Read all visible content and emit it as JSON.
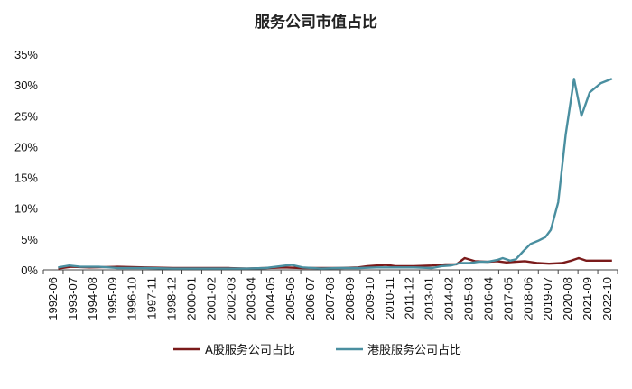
{
  "title": "服务公司市值占比",
  "colors": {
    "a_share": "#7a1a1a",
    "hk_share": "#4a8fa0",
    "axis": "#444444"
  },
  "chart_data": {
    "type": "line",
    "title": "服务公司市值占比",
    "xlabel": "",
    "ylabel": "",
    "ylim": [
      0,
      35
    ],
    "y_ticks": [
      "0%",
      "5%",
      "10%",
      "15%",
      "20%",
      "25%",
      "30%",
      "35%"
    ],
    "x_tick_labels": [
      "1992-06",
      "1993-07",
      "1994-08",
      "1995-09",
      "1996-10",
      "1997-11",
      "1998-12",
      "2000-01",
      "2001-02",
      "2002-03",
      "2003-04",
      "2004-05",
      "2005-06",
      "2006-07",
      "2007-08",
      "2008-09",
      "2009-10",
      "2010-11",
      "2011-12",
      "2013-01",
      "2014-02",
      "2015-03",
      "2016-04",
      "2017-05",
      "2018-06",
      "2019-07",
      "2020-08",
      "2021-09",
      "2022-10"
    ],
    "grid": false,
    "legend_position": "bottom",
    "series": [
      {
        "name": "A股服务公司占比",
        "color": "#7a1a1a",
        "points": [
          {
            "x": 1993.3,
            "y": 0.2
          },
          {
            "x": 1994.0,
            "y": 0.5
          },
          {
            "x": 1995.0,
            "y": 0.4
          },
          {
            "x": 1996.5,
            "y": 0.5
          },
          {
            "x": 1998.0,
            "y": 0.4
          },
          {
            "x": 1999.5,
            "y": 0.3
          },
          {
            "x": 2001.0,
            "y": 0.3
          },
          {
            "x": 2002.5,
            "y": 0.3
          },
          {
            "x": 2003.5,
            "y": 0.2
          },
          {
            "x": 2004.5,
            "y": 0.3
          },
          {
            "x": 2005.5,
            "y": 0.4
          },
          {
            "x": 2006.5,
            "y": 0.3
          },
          {
            "x": 2007.5,
            "y": 0.3
          },
          {
            "x": 2008.5,
            "y": 0.3
          },
          {
            "x": 2009.5,
            "y": 0.4
          },
          {
            "x": 2010.0,
            "y": 0.6
          },
          {
            "x": 2010.5,
            "y": 0.7
          },
          {
            "x": 2011.0,
            "y": 0.8
          },
          {
            "x": 2011.5,
            "y": 0.6
          },
          {
            "x": 2012.5,
            "y": 0.6
          },
          {
            "x": 2013.5,
            "y": 0.7
          },
          {
            "x": 2014.2,
            "y": 0.9
          },
          {
            "x": 2014.8,
            "y": 0.9
          },
          {
            "x": 2015.25,
            "y": 1.9
          },
          {
            "x": 2015.8,
            "y": 1.4
          },
          {
            "x": 2016.5,
            "y": 1.3
          },
          {
            "x": 2017.0,
            "y": 1.4
          },
          {
            "x": 2017.5,
            "y": 1.2
          },
          {
            "x": 2018.0,
            "y": 1.3
          },
          {
            "x": 2018.5,
            "y": 1.4
          },
          {
            "x": 2019.2,
            "y": 1.1
          },
          {
            "x": 2019.8,
            "y": 1.0
          },
          {
            "x": 2020.5,
            "y": 1.1
          },
          {
            "x": 2021.0,
            "y": 1.5
          },
          {
            "x": 2021.4,
            "y": 1.9
          },
          {
            "x": 2021.8,
            "y": 1.5
          },
          {
            "x": 2022.5,
            "y": 1.5
          },
          {
            "x": 2023.2,
            "y": 1.5
          }
        ]
      },
      {
        "name": "港股服务公司占比",
        "color": "#4a8fa0",
        "points": [
          {
            "x": 1993.3,
            "y": 0.4
          },
          {
            "x": 1993.9,
            "y": 0.7
          },
          {
            "x": 1994.5,
            "y": 0.5
          },
          {
            "x": 1995.5,
            "y": 0.5
          },
          {
            "x": 1996.5,
            "y": 0.3
          },
          {
            "x": 1998.0,
            "y": 0.3
          },
          {
            "x": 1999.5,
            "y": 0.2
          },
          {
            "x": 2001.0,
            "y": 0.2
          },
          {
            "x": 2002.5,
            "y": 0.2
          },
          {
            "x": 2003.5,
            "y": 0.2
          },
          {
            "x": 2004.5,
            "y": 0.3
          },
          {
            "x": 2005.3,
            "y": 0.6
          },
          {
            "x": 2005.9,
            "y": 0.8
          },
          {
            "x": 2006.5,
            "y": 0.4
          },
          {
            "x": 2007.5,
            "y": 0.2
          },
          {
            "x": 2008.5,
            "y": 0.3
          },
          {
            "x": 2009.5,
            "y": 0.3
          },
          {
            "x": 2010.5,
            "y": 0.4
          },
          {
            "x": 2011.5,
            "y": 0.4
          },
          {
            "x": 2012.5,
            "y": 0.4
          },
          {
            "x": 2013.5,
            "y": 0.3
          },
          {
            "x": 2014.0,
            "y": 0.6
          },
          {
            "x": 2014.5,
            "y": 0.7
          },
          {
            "x": 2015.0,
            "y": 1.1
          },
          {
            "x": 2015.5,
            "y": 1.1
          },
          {
            "x": 2016.0,
            "y": 1.3
          },
          {
            "x": 2016.5,
            "y": 1.3
          },
          {
            "x": 2017.0,
            "y": 1.6
          },
          {
            "x": 2017.3,
            "y": 1.9
          },
          {
            "x": 2017.7,
            "y": 1.5
          },
          {
            "x": 2018.0,
            "y": 1.7
          },
          {
            "x": 2018.4,
            "y": 3.0
          },
          {
            "x": 2018.8,
            "y": 4.2
          },
          {
            "x": 2019.2,
            "y": 4.7
          },
          {
            "x": 2019.6,
            "y": 5.3
          },
          {
            "x": 2019.9,
            "y": 6.5
          },
          {
            "x": 2020.3,
            "y": 11.0
          },
          {
            "x": 2020.7,
            "y": 22.0
          },
          {
            "x": 2021.15,
            "y": 31.0
          },
          {
            "x": 2021.55,
            "y": 25.0
          },
          {
            "x": 2022.0,
            "y": 28.8
          },
          {
            "x": 2022.6,
            "y": 30.3
          },
          {
            "x": 2023.2,
            "y": 31.0
          }
        ]
      }
    ]
  }
}
